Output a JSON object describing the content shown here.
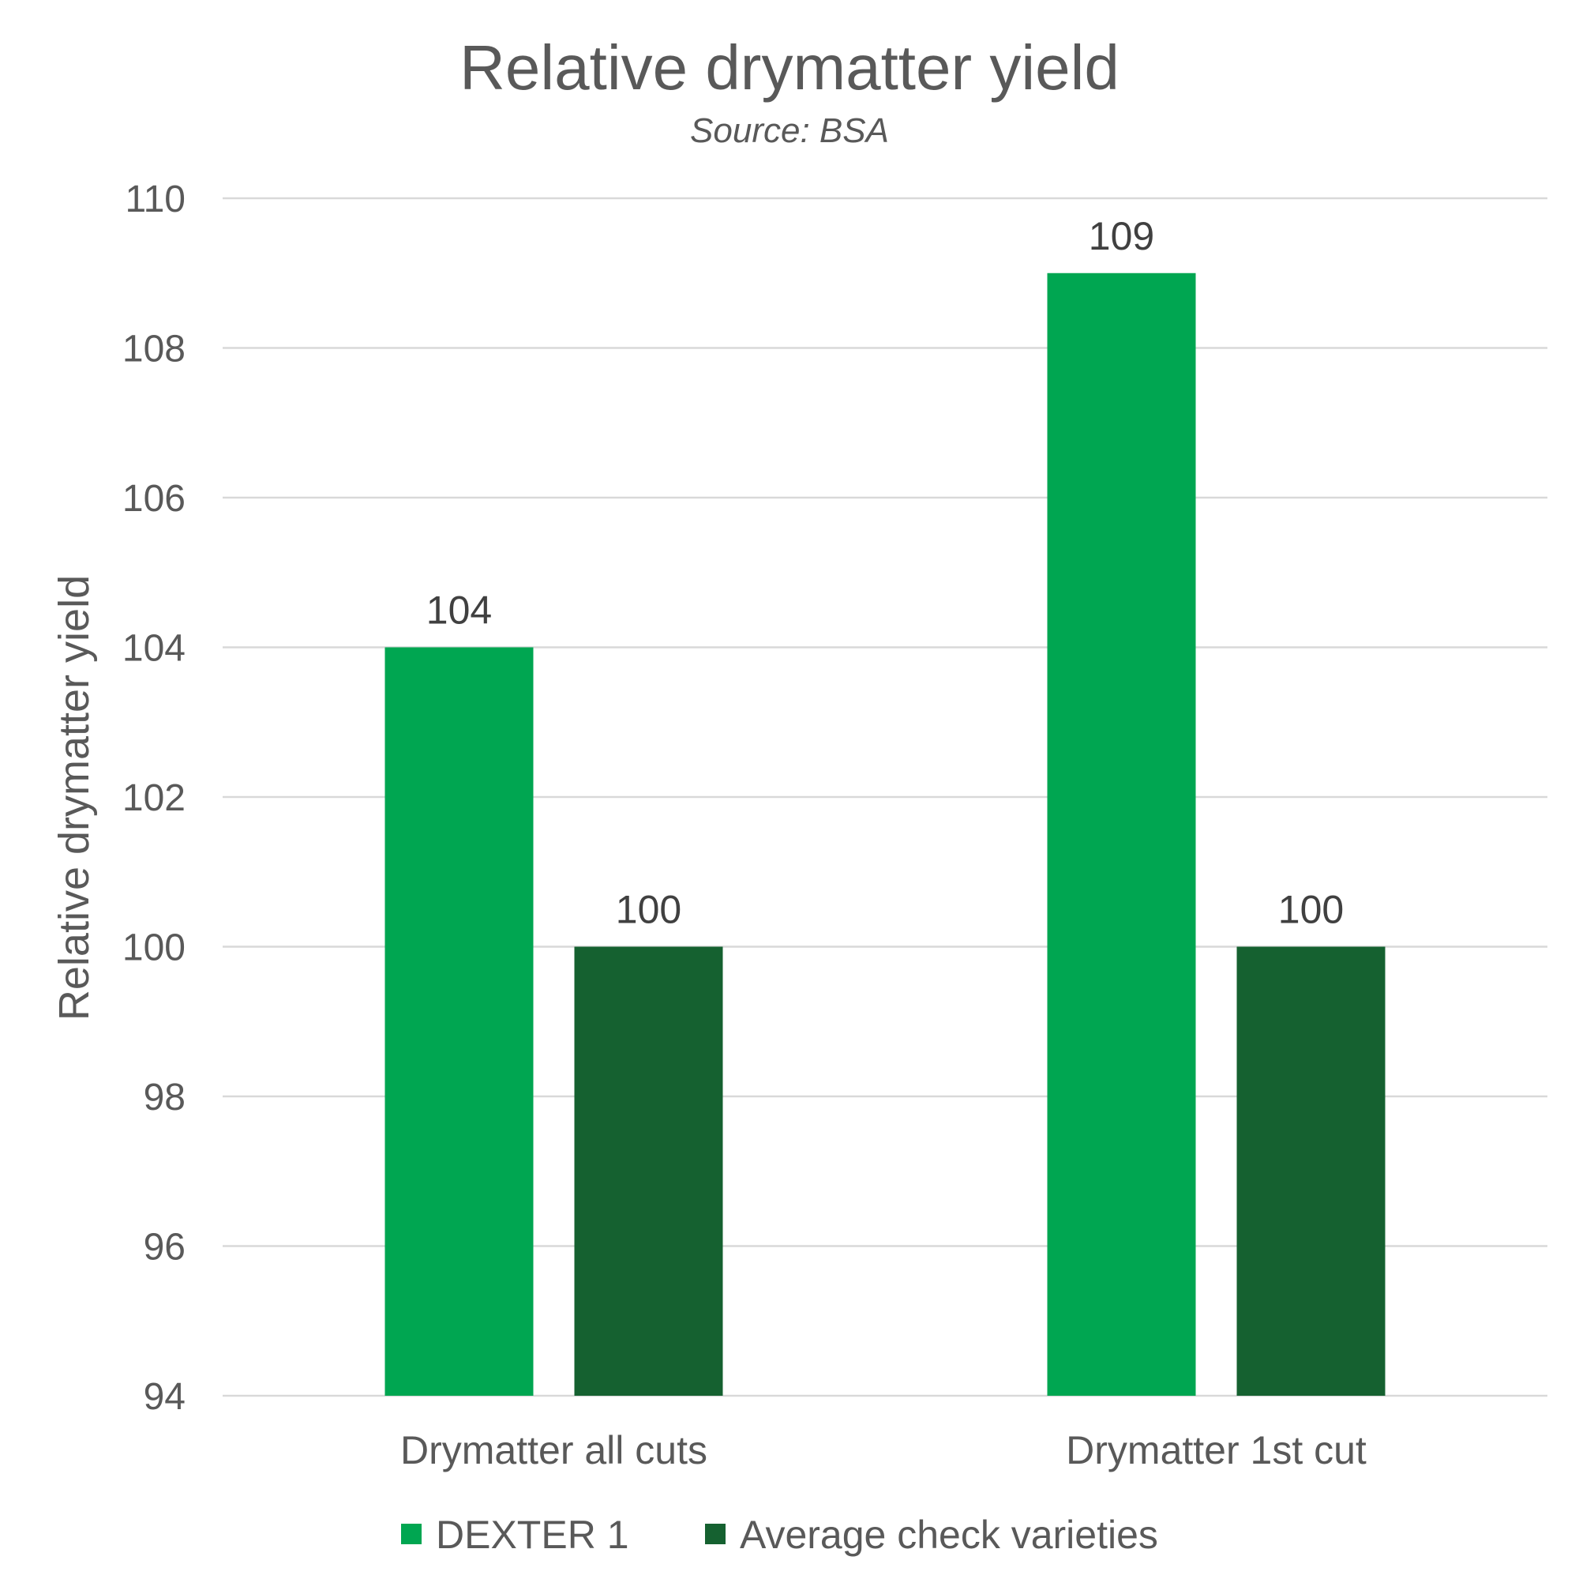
{
  "chart_data": {
    "type": "bar",
    "title": "Relative drymatter yield",
    "subtitle": "Source: BSA",
    "ylabel": "Relative drymatter yield",
    "xlabel": "",
    "categories": [
      "Drymatter all cuts",
      "Drymatter 1st cut"
    ],
    "series": [
      {
        "name": "DEXTER 1",
        "values": [
          104,
          109
        ],
        "color": "#00a651"
      },
      {
        "name": "Average check varieties",
        "values": [
          100,
          100
        ],
        "color": "#156130"
      }
    ],
    "ylim": [
      94,
      110
    ],
    "yticks": [
      94,
      96,
      98,
      100,
      102,
      104,
      106,
      108,
      110
    ],
    "grid": true,
    "legend": "bottom",
    "data_labels": true
  }
}
